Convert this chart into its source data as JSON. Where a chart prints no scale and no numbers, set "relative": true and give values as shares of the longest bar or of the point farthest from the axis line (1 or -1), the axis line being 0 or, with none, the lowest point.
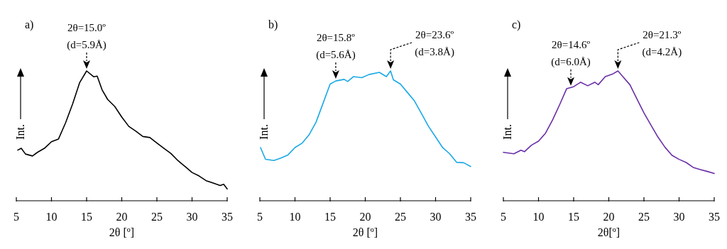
{
  "chart_data": [
    {
      "type": "line",
      "title": "a)",
      "xlabel": "2θ [º]",
      "ylabel": "Int.",
      "relative": true,
      "xlim": [
        5,
        35
      ],
      "xticks": [
        5,
        10,
        15,
        20,
        25,
        30,
        35
      ],
      "x": [
        5.2,
        5.7,
        6.3,
        7.3,
        8,
        9,
        10,
        11,
        12,
        13,
        14,
        15,
        16,
        16.5,
        17.2,
        18,
        19,
        20,
        21,
        22,
        23,
        24,
        25,
        26,
        27,
        28,
        29,
        30,
        31,
        32,
        33,
        34,
        34.5,
        35
      ],
      "series": [
        {
          "color": "#000000",
          "values": [
            0.39,
            0.404,
            0.36,
            0.345,
            0.373,
            0.404,
            0.455,
            0.476,
            0.6,
            0.745,
            0.909,
            1,
            0.955,
            0.96,
            0.855,
            0.78,
            0.727,
            0.645,
            0.573,
            0.536,
            0.495,
            0.487,
            0.445,
            0.404,
            0.364,
            0.309,
            0.264,
            0.218,
            0.191,
            0.155,
            0.136,
            0.118,
            0.127,
            0.091
          ]
        }
      ],
      "annotations": [
        {
          "text": "2θ=15.0º\n(d=5.9Å)",
          "x": 15,
          "y": 1
        }
      ]
    },
    {
      "type": "line",
      "title": "b)",
      "xlabel": "2θ [º]",
      "ylabel": "Int.",
      "relative": true,
      "xlim": [
        5,
        35
      ],
      "xticks": [
        5,
        10,
        15,
        20,
        25,
        30,
        35
      ],
      "x": [
        5.1,
        5.8,
        7,
        8,
        9,
        10,
        11,
        12,
        13,
        14,
        15,
        15.8,
        17,
        17.5,
        18.3,
        19.5,
        20.5,
        22,
        23,
        23.6,
        24,
        25,
        26,
        27,
        28,
        29,
        30,
        31,
        32,
        33,
        34,
        35
      ],
      "series": [
        {
          "color": "#1ba9e6",
          "values": [
            0.41,
            0.32,
            0.31,
            0.329,
            0.353,
            0.41,
            0.443,
            0.508,
            0.606,
            0.752,
            0.899,
            0.923,
            0.935,
            0.919,
            0.956,
            0.948,
            0.972,
            0.989,
            0.956,
            1,
            0.932,
            0.899,
            0.834,
            0.769,
            0.671,
            0.573,
            0.492,
            0.41,
            0.362,
            0.296,
            0.293,
            0.264
          ]
        }
      ],
      "annotations": [
        {
          "text": "2θ=15.8º\n(d=5.6Å)",
          "x": 15.8,
          "y": 0.923
        },
        {
          "text": "2θ=23.6º\n(d=3.8Å)",
          "x": 23.6,
          "y": 1
        }
      ]
    },
    {
      "type": "line",
      "title": "c)",
      "xlabel": "2θ[º]",
      "ylabel": "Int.",
      "relative": true,
      "xlim": [
        5,
        35
      ],
      "xticks": [
        5,
        10,
        15,
        20,
        25,
        30,
        35
      ],
      "x": [
        5,
        6.5,
        7.5,
        8,
        9,
        10,
        11,
        12,
        13,
        14,
        15,
        16,
        17,
        18,
        18.5,
        19.5,
        20.5,
        21.3,
        22,
        23,
        24,
        25,
        26,
        27,
        28,
        29,
        30,
        31,
        32,
        33,
        34,
        35
      ],
      "series": [
        {
          "color": "#6a2fa8",
          "values": [
            0.373,
            0.362,
            0.389,
            0.378,
            0.428,
            0.459,
            0.521,
            0.622,
            0.739,
            0.863,
            0.879,
            0.913,
            0.886,
            0.913,
            0.894,
            0.956,
            0.975,
            1,
            0.956,
            0.894,
            0.785,
            0.677,
            0.583,
            0.49,
            0.412,
            0.35,
            0.319,
            0.295,
            0.257,
            0.241,
            0.226,
            0.21
          ]
        }
      ],
      "annotations": [
        {
          "text": "2θ=14.6º\n(d=6.0Å)",
          "x": 14.6,
          "y": 0.87
        },
        {
          "text": "2θ=21.3º\n(d=4.2Å)",
          "x": 21.3,
          "y": 1
        }
      ]
    }
  ]
}
